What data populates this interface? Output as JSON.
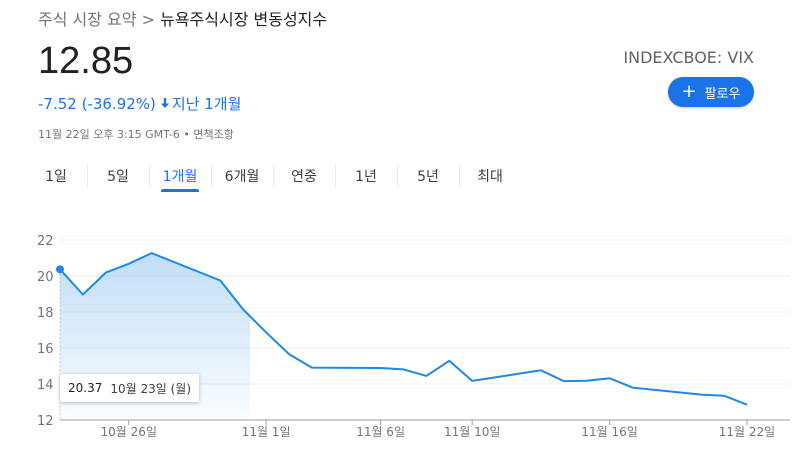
{
  "breadcrumb": {
    "parent": "주식 시장 요약",
    "separator": ">",
    "current": "뉴욕주식시장 변동성지수"
  },
  "quote": {
    "price": "12.85",
    "change": "-7.52 (-36.92%)",
    "period": "지난 1개월",
    "timestamp": "11월 22일 오후 3:15 GMT-6 • 면책조항",
    "ticker": "INDEXCBOE: VIX"
  },
  "follow_button": {
    "label": "팔로우"
  },
  "tabs": [
    {
      "label": "1일"
    },
    {
      "label": "5일"
    },
    {
      "label": "1개월",
      "active": true
    },
    {
      "label": "6개월"
    },
    {
      "label": "연중"
    },
    {
      "label": "1년"
    },
    {
      "label": "5년"
    },
    {
      "label": "최대"
    }
  ],
  "colors": {
    "accent": "#1a73e8",
    "line": "#1e88e5",
    "grid": "#eeeeee"
  },
  "tooltip": {
    "value": "20.37",
    "date": "10월 23일 (월)"
  },
  "chart_data": {
    "type": "area",
    "series": [
      {
        "values": [
          [
            "2023-10-23",
            20.37
          ],
          [
            "2023-10-24",
            18.97
          ],
          [
            "2023-10-25",
            20.19
          ],
          [
            "2023-10-26",
            20.68
          ],
          [
            "2023-10-27",
            21.27
          ],
          [
            "2023-10-30",
            19.75
          ],
          [
            "2023-10-31",
            18.14
          ],
          [
            "2023-11-01",
            16.87
          ],
          [
            "2023-11-02",
            15.66
          ],
          [
            "2023-11-03",
            14.91
          ],
          [
            "2023-11-06",
            14.89
          ],
          [
            "2023-11-07",
            14.81
          ],
          [
            "2023-11-08",
            14.45
          ],
          [
            "2023-11-09",
            15.29
          ],
          [
            "2023-11-10",
            14.17
          ],
          [
            "2023-11-13",
            14.76
          ],
          [
            "2023-11-14",
            14.16
          ],
          [
            "2023-11-15",
            14.18
          ],
          [
            "2023-11-16",
            14.32
          ],
          [
            "2023-11-17",
            13.8
          ],
          [
            "2023-11-20",
            13.41
          ],
          [
            "2023-11-21",
            13.35
          ],
          [
            "2023-11-22",
            12.85
          ]
        ]
      }
    ],
    "xticks": [
      {
        "date": "2023-10-26",
        "label": "10월 26일"
      },
      {
        "date": "2023-11-01",
        "label": "11월 1일"
      },
      {
        "date": "2023-11-06",
        "label": "11월 6일"
      },
      {
        "date": "2023-11-10",
        "label": "11월 10일"
      },
      {
        "date": "2023-11-16",
        "label": "11월 16일"
      },
      {
        "date": "2023-11-22",
        "label": "11월 22일"
      }
    ],
    "yticks": [
      "12",
      "14",
      "16",
      "18",
      "20",
      "22"
    ],
    "ylim": [
      12,
      22
    ],
    "grid": true,
    "highlighted_date": "2023-10-23"
  }
}
